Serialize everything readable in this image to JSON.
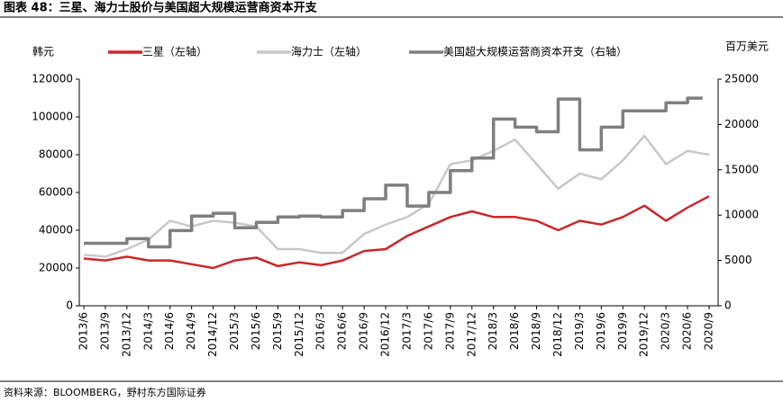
{
  "chart_data": {
    "type": "line",
    "title": "图表 48：三星、海力士股价与美国超大规模运营商资本开支",
    "y_label": "韩元",
    "y2_label": "百万美元",
    "source": "资料来源：BLOOMBERG，野村东方国际证券",
    "categories": [
      "2013/6",
      "2013/9",
      "2013/12",
      "2014/3",
      "2014/6",
      "2014/9",
      "2014/12",
      "2015/3",
      "2015/6",
      "2015/9",
      "2015/12",
      "2016/3",
      "2016/6",
      "2016/9",
      "2016/12",
      "2017/3",
      "2017/6",
      "2017/9",
      "2017/12",
      "2018/3",
      "2018/6",
      "2018/9",
      "2018/12",
      "2019/3",
      "2019/6",
      "2019/9",
      "2019/12",
      "2020/3",
      "2020/6",
      "2020/9"
    ],
    "series": [
      {
        "name": "三星（左轴）",
        "color": "#c8282a",
        "axis": "y",
        "values": [
          25000,
          24000,
          26000,
          24000,
          24000,
          22000,
          20000,
          24000,
          25500,
          21000,
          23000,
          21500,
          24000,
          29000,
          30000,
          37000,
          42000,
          47000,
          50000,
          47000,
          47000,
          45000,
          40000,
          45000,
          43000,
          47000,
          53000,
          45000,
          52000,
          58000
        ]
      },
      {
        "name": "海力士（左轴）",
        "color": "#c8c8c8",
        "axis": "y",
        "values": [
          27000,
          26000,
          30000,
          35000,
          45000,
          42000,
          45000,
          44000,
          42000,
          30000,
          30000,
          28000,
          28000,
          38000,
          43000,
          47000,
          54000,
          75000,
          77000,
          82000,
          88000,
          75000,
          62000,
          70000,
          67000,
          77000,
          90000,
          75000,
          82000,
          80000
        ]
      },
      {
        "name": "美国超大规模运营商资本开支（右轴）",
        "color": "#7f7f7f",
        "axis": "y2",
        "step": true,
        "values": [
          6900,
          6900,
          7400,
          6500,
          8300,
          9900,
          10200,
          8600,
          9200,
          9800,
          9900,
          9800,
          10500,
          11800,
          13300,
          11000,
          12500,
          14900,
          16300,
          20600,
          19700,
          19200,
          22800,
          17200,
          19700,
          21500,
          21500,
          22400,
          22900,
          null
        ]
      }
    ],
    "ylim": [
      0,
      120000
    ],
    "yticks": [
      0,
      20000,
      40000,
      60000,
      80000,
      100000,
      120000
    ],
    "y2lim": [
      0,
      25000
    ],
    "y2ticks": [
      0,
      5000,
      10000,
      15000,
      20000,
      25000
    ]
  }
}
